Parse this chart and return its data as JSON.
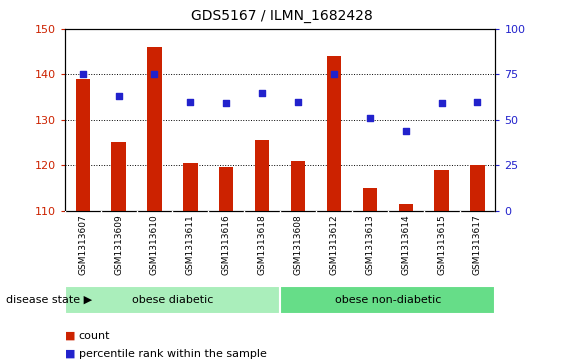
{
  "title": "GDS5167 / ILMN_1682428",
  "samples": [
    "GSM1313607",
    "GSM1313609",
    "GSM1313610",
    "GSM1313611",
    "GSM1313616",
    "GSM1313618",
    "GSM1313608",
    "GSM1313612",
    "GSM1313613",
    "GSM1313614",
    "GSM1313615",
    "GSM1313617"
  ],
  "counts": [
    139,
    125,
    146,
    120.5,
    119.5,
    125.5,
    121,
    144,
    115,
    111.5,
    119,
    120
  ],
  "percentile_right_vals": [
    75,
    63,
    75,
    60,
    59,
    65,
    60,
    75,
    51,
    44,
    59,
    60
  ],
  "group1_label": "obese diabetic",
  "group2_label": "obese non-diabetic",
  "group1_count": 6,
  "group2_count": 6,
  "ylim_left": [
    110,
    150
  ],
  "ylim_right": [
    0,
    100
  ],
  "yticks_left": [
    110,
    120,
    130,
    140,
    150
  ],
  "yticks_right": [
    0,
    25,
    50,
    75,
    100
  ],
  "bar_color": "#cc2200",
  "dot_color": "#2222cc",
  "group1_color": "#aaeebb",
  "group2_color": "#66dd88",
  "xticklabel_bg": "#c8c8c8",
  "disease_state_label": "disease state",
  "legend_count_label": "count",
  "legend_pct_label": "percentile rank within the sample",
  "grid_lines": [
    120,
    130,
    140
  ],
  "bar_width": 0.4
}
